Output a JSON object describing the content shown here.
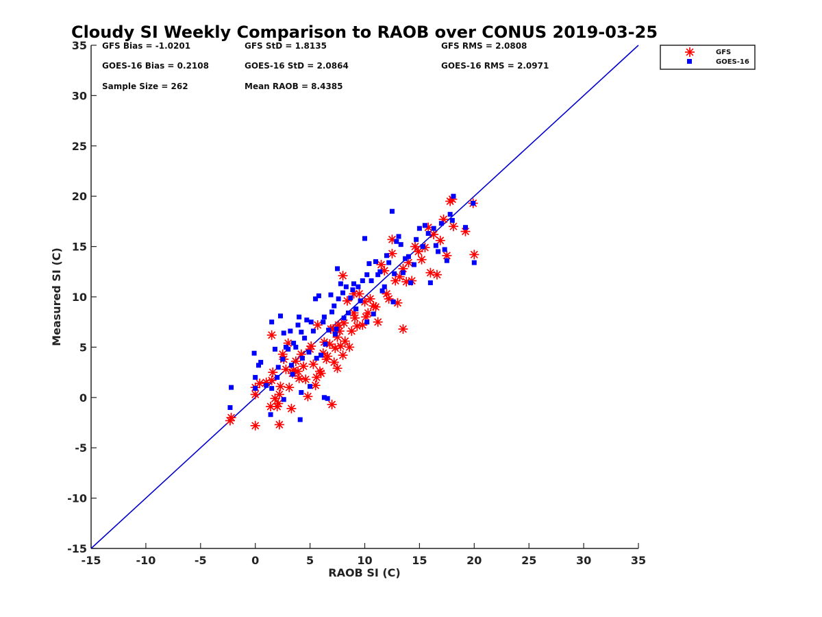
{
  "chart_data": {
    "type": "scatter",
    "title": "Cloudy SI Weekly Comparison to RAOB over CONUS 2019-03-25",
    "xlabel": "RAOB SI (C)",
    "ylabel": "Measured SI (C)",
    "xlim": [
      -15,
      35
    ],
    "ylim": [
      -15,
      35
    ],
    "xticks": [
      "-15",
      "-10",
      "-5",
      "0",
      "5",
      "10",
      "15",
      "20",
      "25",
      "30",
      "35"
    ],
    "yticks": [
      "-15",
      "-10",
      "-5",
      "0",
      "5",
      "10",
      "15",
      "20",
      "25",
      "30",
      "35"
    ],
    "grid": false,
    "legend_position": "top-right outside",
    "reference_line": {
      "x": [
        -15,
        35
      ],
      "y": [
        -15,
        35
      ],
      "color": "#0000cc"
    },
    "stats": [
      "GFS Bias = -1.0201",
      "GFS StD = 1.8135",
      "GFS RMS = 2.0808",
      "GOES-16 Bias = 0.2108",
      "GOES-16 StD = 2.0864",
      "GOES-16 RMS = 2.0971",
      "Sample Size = 262",
      "Mean RAOB = 8.4385"
    ],
    "series": [
      {
        "name": "GFS",
        "marker": "asterisk",
        "color": "#ff0000",
        "x": [
          -2.2,
          -2.3,
          0.0,
          0.0,
          0.4,
          1.0,
          1.4,
          1.5,
          1.6,
          1.8,
          2.0,
          2.1,
          2.2,
          2.3,
          2.5,
          2.6,
          2.8,
          3.0,
          3.1,
          3.3,
          3.4,
          3.5,
          3.7,
          3.9,
          4.0,
          4.2,
          4.4,
          4.6,
          4.8,
          5.0,
          5.1,
          5.3,
          5.5,
          5.6,
          5.7,
          5.9,
          6.0,
          6.2,
          6.3,
          6.5,
          6.6,
          6.8,
          7.0,
          7.1,
          7.2,
          7.3,
          7.5,
          7.6,
          7.7,
          7.8,
          8.0,
          8.1,
          8.2,
          8.4,
          8.6,
          8.8,
          9.0,
          9.1,
          9.3,
          9.5,
          9.8,
          10.0,
          10.1,
          10.3,
          10.5,
          10.8,
          11.0,
          11.2,
          11.5,
          11.8,
          12.0,
          12.2,
          12.5,
          12.8,
          13.0,
          13.2,
          13.5,
          13.8,
          14.0,
          14.3,
          14.6,
          14.9,
          15.2,
          15.5,
          15.8,
          16.0,
          16.3,
          16.6,
          16.9,
          17.2,
          17.5,
          17.8,
          18.0,
          18.1,
          19.2,
          19.9,
          20.0,
          6.9,
          13.5,
          12.5,
          7.5,
          8.0,
          9.0,
          1.5,
          2.2,
          0.0
        ],
        "y": [
          -2.0,
          -2.3,
          -2.8,
          0.3,
          1.4,
          1.5,
          -0.9,
          6.2,
          2.5,
          -0.1,
          -0.9,
          -0.6,
          -2.7,
          1.1,
          4.3,
          3.8,
          2.8,
          5.4,
          1.0,
          -1.1,
          2.4,
          2.7,
          3.6,
          2.6,
          1.9,
          4.3,
          3.1,
          1.8,
          0.1,
          4.8,
          5.1,
          3.3,
          1.2,
          2.0,
          7.2,
          2.6,
          2.4,
          4.4,
          5.5,
          3.8,
          4.1,
          5.3,
          -0.7,
          6.8,
          3.5,
          4.9,
          6.0,
          7.2,
          6.6,
          5.1,
          12.1,
          7.4,
          5.6,
          9.6,
          5.0,
          6.6,
          10.3,
          7.9,
          7.1,
          10.3,
          7.2,
          9.5,
          8.0,
          8.4,
          9.8,
          9.1,
          9.0,
          7.5,
          13.2,
          12.6,
          10.3,
          9.8,
          15.7,
          11.6,
          9.4,
          12.0,
          12.8,
          11.5,
          13.4,
          11.6,
          15.0,
          14.5,
          13.7,
          14.9,
          16.9,
          12.4,
          16.2,
          12.2,
          15.6,
          17.7,
          14.1,
          19.5,
          19.7,
          17.0,
          16.5,
          19.3,
          14.2,
          6.8,
          6.8,
          14.3,
          2.9,
          4.2,
          8.4,
          1.7,
          0.3,
          1.0
        ]
      },
      {
        "name": "GOES-16",
        "marker": "square",
        "color": "#0000ff",
        "x": [
          -2.2,
          -2.3,
          -0.1,
          0.0,
          0.0,
          0.3,
          0.5,
          1.0,
          1.4,
          1.5,
          1.5,
          1.8,
          2.0,
          2.1,
          2.3,
          2.5,
          2.6,
          2.8,
          3.0,
          3.2,
          3.3,
          3.4,
          3.5,
          3.7,
          3.9,
          4.0,
          4.1,
          4.2,
          4.3,
          4.5,
          4.7,
          4.9,
          5.0,
          5.1,
          5.3,
          5.5,
          5.6,
          5.8,
          6.0,
          6.2,
          6.3,
          6.4,
          6.6,
          6.7,
          6.9,
          7.0,
          7.2,
          7.3,
          7.5,
          7.6,
          7.8,
          8.0,
          8.1,
          8.3,
          8.5,
          8.7,
          8.9,
          9.0,
          9.2,
          9.4,
          9.6,
          9.8,
          10.0,
          10.2,
          10.4,
          10.6,
          10.8,
          11.0,
          11.2,
          11.4,
          11.6,
          11.8,
          12.0,
          12.2,
          12.5,
          12.7,
          12.9,
          13.1,
          13.3,
          13.5,
          13.7,
          14.0,
          14.2,
          14.5,
          14.7,
          15.0,
          15.3,
          15.5,
          15.8,
          16.0,
          16.3,
          16.5,
          16.7,
          17.0,
          17.3,
          17.5,
          17.8,
          18.0,
          18.1,
          19.2,
          19.9,
          20.0,
          6.3,
          4.2,
          2.6,
          12.6,
          10.2,
          7.4
        ],
        "y": [
          1.0,
          -1.0,
          4.4,
          2.0,
          0.9,
          3.2,
          3.5,
          1.2,
          -1.7,
          7.5,
          0.9,
          4.8,
          2.0,
          3.0,
          8.1,
          3.8,
          6.4,
          5.0,
          4.8,
          6.6,
          3.2,
          2.3,
          5.4,
          5.0,
          7.2,
          8.0,
          -2.2,
          6.5,
          3.9,
          5.9,
          7.7,
          4.5,
          1.1,
          7.5,
          6.6,
          9.8,
          3.9,
          10.1,
          4.2,
          7.5,
          8.0,
          5.3,
          -0.1,
          6.7,
          10.2,
          8.5,
          9.1,
          6.3,
          12.8,
          9.8,
          11.3,
          10.4,
          7.9,
          11.0,
          8.4,
          9.9,
          10.7,
          11.3,
          8.8,
          11.0,
          9.6,
          11.6,
          15.8,
          12.2,
          13.3,
          11.6,
          8.3,
          13.5,
          12.2,
          12.5,
          10.6,
          11.0,
          14.1,
          13.4,
          18.5,
          12.3,
          15.5,
          16.0,
          15.2,
          12.4,
          13.8,
          14.0,
          11.4,
          13.2,
          15.7,
          16.8,
          15.0,
          17.1,
          16.3,
          11.4,
          16.8,
          15.1,
          14.5,
          17.3,
          14.7,
          13.6,
          18.2,
          17.6,
          20.0,
          16.9,
          19.3,
          13.4,
          0.0,
          0.5,
          -0.2,
          9.5,
          7.5,
          6.8
        ]
      }
    ]
  }
}
